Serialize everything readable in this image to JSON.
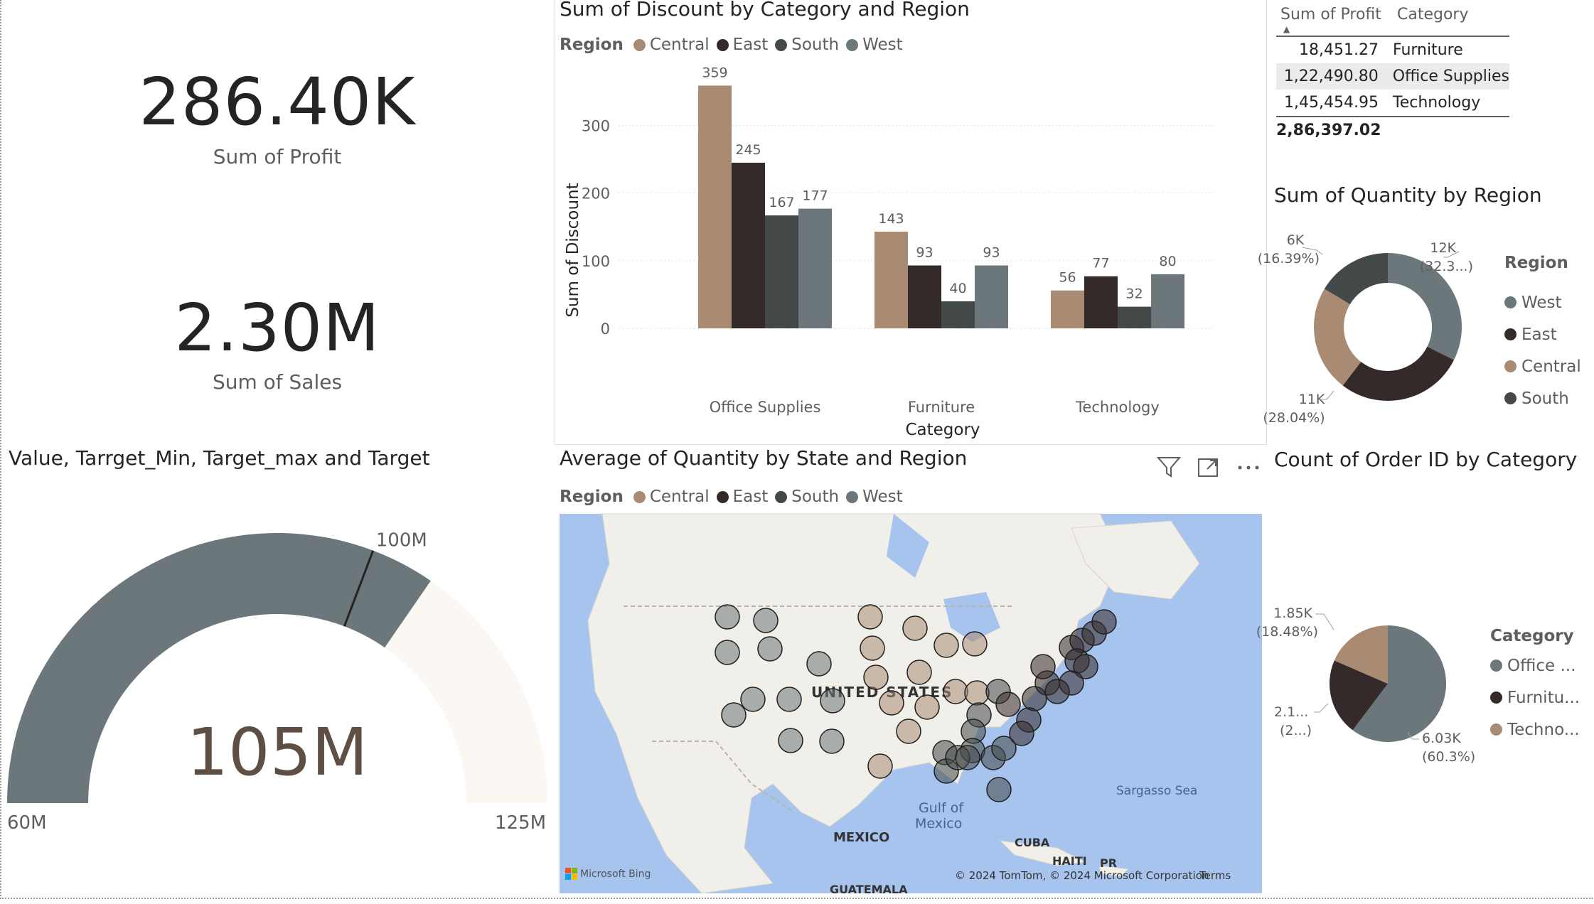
{
  "cards": {
    "profit": {
      "value": "286.40K",
      "label": "Sum of Profit"
    },
    "sales": {
      "value": "2.30M",
      "label": "Sum of Sales"
    }
  },
  "colors": {
    "Central": "#a98a72",
    "East": "#352a2a",
    "South": "#434949",
    "West": "#6b777a",
    "gauge_track": "#fbf8f4"
  },
  "gauge": {
    "title": "Value, Tarrget_Min, Target_max and Target",
    "value": 105,
    "min": 60,
    "max": 125,
    "target": 100,
    "value_label": "105M",
    "min_label": "60M",
    "max_label": "125M",
    "target_label": "100M"
  },
  "bar": {
    "title": "Sum of Discount by Category and Region",
    "legend_title": "Region",
    "regions": [
      "Central",
      "East",
      "South",
      "West"
    ]
  },
  "table": {
    "headers": [
      "Sum of Profit",
      "Category"
    ],
    "rows": [
      {
        "profit": "18,451.27",
        "category": "Furniture"
      },
      {
        "profit": "1,22,490.80",
        "category": "Office Supplies"
      },
      {
        "profit": "1,45,454.95",
        "category": "Technology"
      }
    ],
    "total": "2,86,397.02"
  },
  "donut": {
    "title": "Sum of Quantity by Region",
    "legend_title": "Region",
    "legend": [
      "West",
      "East",
      "Central",
      "South"
    ],
    "labels": {
      "west": [
        "12K",
        "(32.3...)"
      ],
      "east_central": [
        "11K",
        "(28.04%)"
      ],
      "south": [
        "6K",
        "(16.39%)"
      ]
    }
  },
  "map": {
    "title": "Average of Quantity by State and Region",
    "legend_title": "Region",
    "regions": [
      "Central",
      "East",
      "South",
      "West"
    ],
    "labels": {
      "country": "UNITED STATES",
      "mexico": "MEXICO",
      "gulf1": "Gulf of",
      "gulf2": "Mexico",
      "sea": "Sargasso Sea",
      "cuba": "CUBA",
      "haiti": "HAITI",
      "pr": "PR",
      "guatemala": "GUATEMALA",
      "bing": "Microsoft Bing",
      "copyright": "© 2024 TomTom, © 2024 Microsoft Corporation",
      "terms": "Terms"
    }
  },
  "pie": {
    "title": "Count of Order ID by Category",
    "legend_title": "Category",
    "legend": [
      "Office ...",
      "Furnitu...",
      "Techno..."
    ],
    "labels": {
      "office": [
        "6.03K",
        "(60.3%)"
      ],
      "furniture": [
        "2.1...",
        "(2...)"
      ],
      "technology": [
        "1.85K",
        "(18.48%)"
      ]
    }
  },
  "chart_data": [
    {
      "type": "bar",
      "title": "Sum of Discount by Category and Region",
      "xlabel": "Category",
      "ylabel": "Sum of Discount",
      "categories": [
        "Office Supplies",
        "Furniture",
        "Technology"
      ],
      "series": [
        {
          "name": "Central",
          "values": [
            359,
            143,
            56
          ]
        },
        {
          "name": "East",
          "values": [
            245,
            93,
            77
          ]
        },
        {
          "name": "South",
          "values": [
            167,
            40,
            32
          ]
        },
        {
          "name": "West",
          "values": [
            177,
            93,
            80
          ]
        }
      ],
      "ylim": [
        0,
        370
      ],
      "yticks": [
        0,
        100,
        200,
        300
      ],
      "legend": "top-left",
      "grid": true
    },
    {
      "type": "pie",
      "title": "Sum of Quantity by Region",
      "donut": true,
      "categories": [
        "West",
        "East",
        "Central",
        "South"
      ],
      "values": [
        12266,
        10618,
        8780,
        6209
      ]
    },
    {
      "type": "pie",
      "title": "Count of Order ID by Category",
      "categories": [
        "Office Supplies",
        "Furniture",
        "Technology"
      ],
      "values": [
        6026,
        2121,
        1847
      ]
    }
  ]
}
